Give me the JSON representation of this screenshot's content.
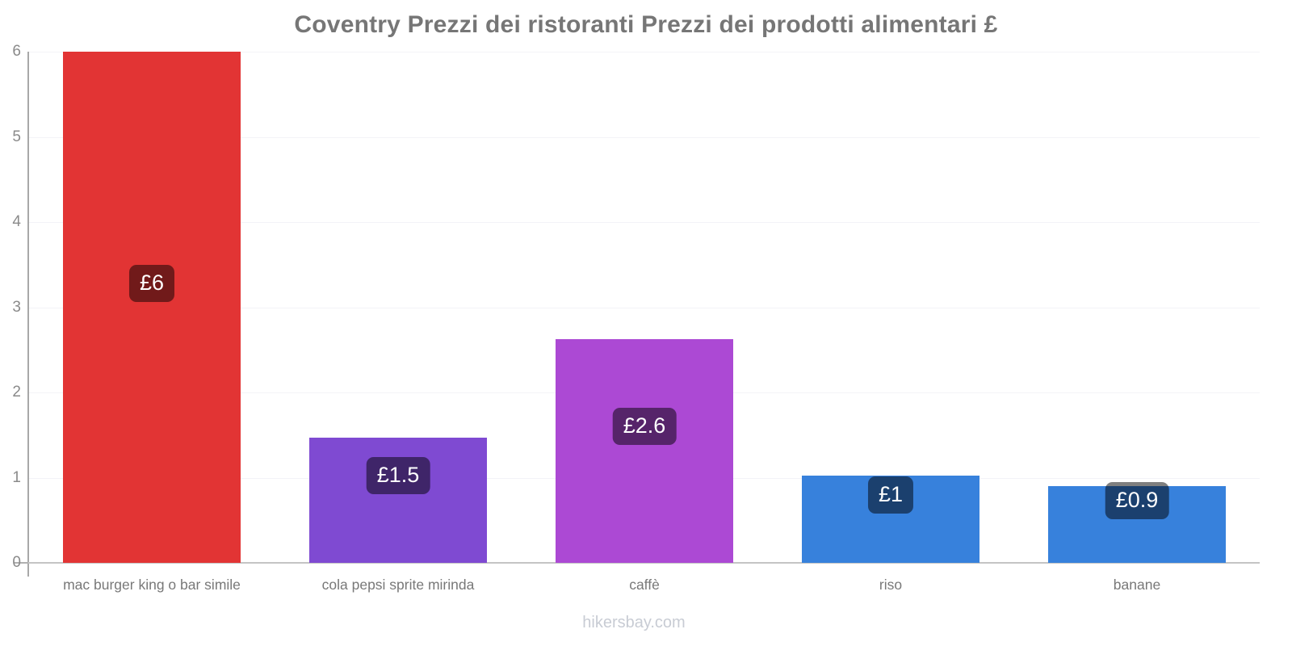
{
  "chart": {
    "title": "Coventry Prezzi dei ristoranti Prezzi dei prodotti alimentari £"
  },
  "chart_data": {
    "type": "bar",
    "title": "Coventry Prezzi dei ristoranti Prezzi dei prodotti alimentari £",
    "categories": [
      "mac burger king o bar simile",
      "cola pepsi sprite mirinda",
      "caffè",
      "riso",
      "banane"
    ],
    "values": [
      6,
      1.47,
      2.63,
      1.02,
      0.9
    ],
    "value_labels": [
      "£6",
      "£1.5",
      "£2.6",
      "£1",
      "£0.9"
    ],
    "bar_colors": [
      "#e23434",
      "#7f4ad2",
      "#ac49d4",
      "#3781dc",
      "#3781dc"
    ],
    "currency": "£",
    "xlabel": "",
    "ylabel": "",
    "ylim": [
      0,
      6
    ],
    "yticks": [
      0,
      1,
      2,
      3,
      4,
      5,
      6
    ],
    "grid": true,
    "legend": false,
    "badge_background": "rgba(0,0,0,0.5)",
    "badge_text_color": "#ffffff"
  },
  "footer": {
    "watermark": "hikersbay.com"
  }
}
